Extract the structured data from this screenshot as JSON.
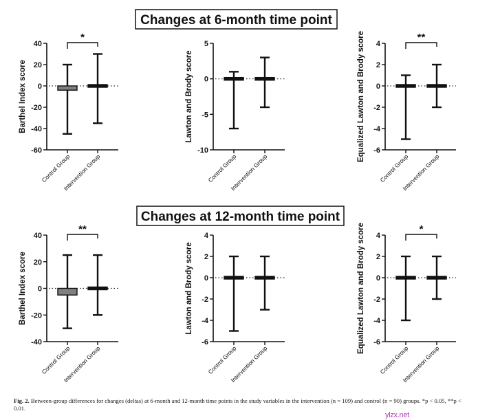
{
  "figure": {
    "panel_titles": [
      "Changes at 6-month time point",
      "Changes at 12-month time point"
    ],
    "caption_label": "Fig. 2.",
    "caption_text": "Between-group differences for changes (deltas) at 6-month and 12-month time points in the study variables in the intervention (n = 109) and control (n = 90) groups. *p < 0.05, **p < 0.01.",
    "watermark": "ylzx.net"
  },
  "colors": {
    "control_bar": "#808080",
    "intervention_bar": "#111111",
    "axis": "#111111"
  },
  "chart_data": [
    {
      "type": "bar",
      "panel": "Changes at 6-month time point",
      "title": "",
      "ylabel": "Barthel Index score",
      "xlabel": "",
      "categories": [
        "Control Group",
        "Intervention Group"
      ],
      "values": [
        -4,
        0.5
      ],
      "error_low": [
        -45,
        -35
      ],
      "error_high": [
        20,
        30
      ],
      "ylim": [
        -60,
        40
      ],
      "yticks": [
        -60,
        -40,
        -20,
        0,
        20,
        40
      ],
      "reference_line": 0,
      "significance": "*"
    },
    {
      "type": "bar",
      "panel": "Changes at 6-month time point",
      "title": "",
      "ylabel": "Lawton and Brody score",
      "xlabel": "",
      "categories": [
        "Control Group",
        "Intervention Group"
      ],
      "values": [
        0,
        0
      ],
      "error_low": [
        -7,
        -4
      ],
      "error_high": [
        1,
        3
      ],
      "ylim": [
        -10,
        5
      ],
      "yticks": [
        -10,
        -5,
        0,
        5
      ],
      "reference_line": 0,
      "significance": ""
    },
    {
      "type": "bar",
      "panel": "Changes at 6-month time point",
      "title": "",
      "ylabel": "Equalized Lawton and Brody score",
      "xlabel": "",
      "categories": [
        "Control Group",
        "Intervention Group"
      ],
      "values": [
        0,
        0
      ],
      "error_low": [
        -5,
        -2
      ],
      "error_high": [
        1,
        2
      ],
      "ylim": [
        -6,
        4
      ],
      "yticks": [
        -6,
        -4,
        -2,
        0,
        2,
        4
      ],
      "reference_line": 0,
      "significance": "**"
    },
    {
      "type": "bar",
      "panel": "Changes at 12-month time point",
      "title": "",
      "ylabel": "Barthel Index score",
      "xlabel": "",
      "categories": [
        "Control Group",
        "Intervention Group"
      ],
      "values": [
        -5,
        0.5
      ],
      "error_low": [
        -30,
        -20
      ],
      "error_high": [
        25,
        25
      ],
      "ylim": [
        -40,
        40
      ],
      "yticks": [
        -40,
        -20,
        0,
        20,
        40
      ],
      "reference_line": 0,
      "significance": "**"
    },
    {
      "type": "bar",
      "panel": "Changes at 12-month time point",
      "title": "",
      "ylabel": "Lawton and Brody score",
      "xlabel": "",
      "categories": [
        "Control Group",
        "Intervention Group"
      ],
      "values": [
        0,
        0
      ],
      "error_low": [
        -5,
        -3
      ],
      "error_high": [
        2,
        2
      ],
      "ylim": [
        -6,
        4
      ],
      "yticks": [
        -6,
        -4,
        -2,
        0,
        2,
        4
      ],
      "reference_line": 0,
      "significance": ""
    },
    {
      "type": "bar",
      "panel": "Changes at 12-month time point",
      "title": "",
      "ylabel": "Equalized Lawton and Brody score",
      "xlabel": "",
      "categories": [
        "Control Group",
        "Intervention Group"
      ],
      "values": [
        0,
        0
      ],
      "error_low": [
        -4,
        -2
      ],
      "error_high": [
        2,
        2
      ],
      "ylim": [
        -6,
        4
      ],
      "yticks": [
        -6,
        -4,
        -2,
        0,
        2,
        4
      ],
      "reference_line": 0,
      "significance": "*"
    }
  ]
}
